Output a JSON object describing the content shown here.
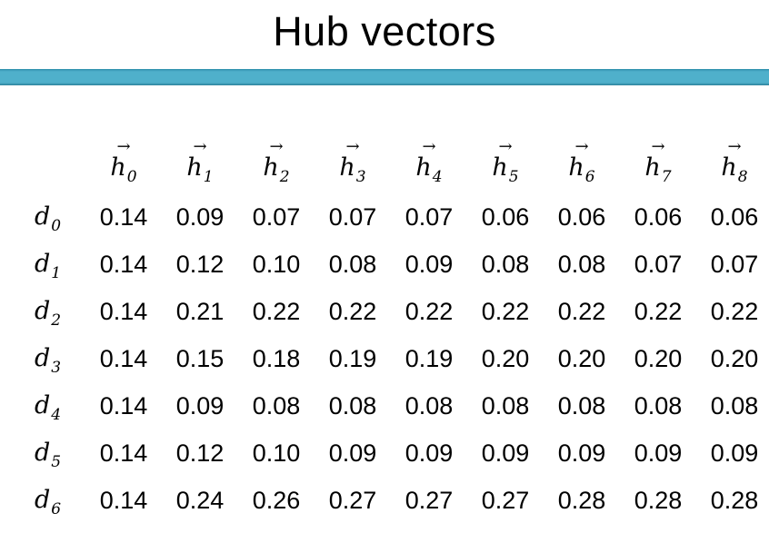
{
  "title": "Hub vectors",
  "table": {
    "column_headers": [
      {
        "base": "h",
        "sub": "0"
      },
      {
        "base": "h",
        "sub": "1"
      },
      {
        "base": "h",
        "sub": "2"
      },
      {
        "base": "h",
        "sub": "3"
      },
      {
        "base": "h",
        "sub": "4"
      },
      {
        "base": "h",
        "sub": "5"
      },
      {
        "base": "h",
        "sub": "6"
      },
      {
        "base": "h",
        "sub": "7"
      },
      {
        "base": "h",
        "sub": "8"
      }
    ],
    "rows": [
      {
        "label": {
          "base": "d",
          "sub": "0"
        },
        "values": [
          "0.14",
          "0.09",
          "0.07",
          "0.07",
          "0.07",
          "0.06",
          "0.06",
          "0.06",
          "0.06"
        ]
      },
      {
        "label": {
          "base": "d",
          "sub": "1"
        },
        "values": [
          "0.14",
          "0.12",
          "0.10",
          "0.08",
          "0.09",
          "0.08",
          "0.08",
          "0.07",
          "0.07"
        ]
      },
      {
        "label": {
          "base": "d",
          "sub": "2"
        },
        "values": [
          "0.14",
          "0.21",
          "0.22",
          "0.22",
          "0.22",
          "0.22",
          "0.22",
          "0.22",
          "0.22"
        ]
      },
      {
        "label": {
          "base": "d",
          "sub": "3"
        },
        "values": [
          "0.14",
          "0.15",
          "0.18",
          "0.19",
          "0.19",
          "0.20",
          "0.20",
          "0.20",
          "0.20"
        ]
      },
      {
        "label": {
          "base": "d",
          "sub": "4"
        },
        "values": [
          "0.14",
          "0.09",
          "0.08",
          "0.08",
          "0.08",
          "0.08",
          "0.08",
          "0.08",
          "0.08"
        ]
      },
      {
        "label": {
          "base": "d",
          "sub": "5"
        },
        "values": [
          "0.14",
          "0.12",
          "0.10",
          "0.09",
          "0.09",
          "0.09",
          "0.09",
          "0.09",
          "0.09"
        ]
      },
      {
        "label": {
          "base": "d",
          "sub": "6"
        },
        "values": [
          "0.14",
          "0.24",
          "0.26",
          "0.27",
          "0.27",
          "0.27",
          "0.28",
          "0.28",
          "0.28"
        ]
      }
    ]
  }
}
